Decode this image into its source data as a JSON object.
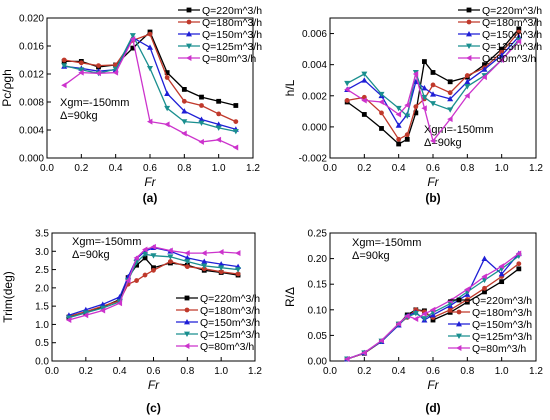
{
  "colors": {
    "Q=220m^3/h": "#000000",
    "Q=180m^3/h": "#c0392b",
    "Q=150m^3/h": "#1f1fd6",
    "Q=125m^3/h": "#1a8f8f",
    "Q=80m^3/h": "#cc33cc"
  },
  "chart_data": [
    {
      "panel_label": "(a)",
      "type": "line",
      "xlabel": "Fr",
      "ylabel": "Pc/ρgh",
      "xlim": [
        0.0,
        1.2
      ],
      "ylim": [
        0.0,
        0.02
      ],
      "xticks": [
        "0.0",
        "0.2",
        "0.4",
        "0.6",
        "0.8",
        "1.0",
        "1.2"
      ],
      "yticks": [
        "0.000",
        "0.004",
        "0.008",
        "0.012",
        "0.016",
        "0.020"
      ],
      "legend": "top-right",
      "annotations": [
        "Xgm=-150mm",
        "Δ=90kg"
      ],
      "x": [
        0.1,
        0.2,
        0.3,
        0.4,
        0.5,
        0.6,
        0.7,
        0.8,
        0.9,
        1.0,
        1.1
      ],
      "series": [
        {
          "name": "Q=220m^3/h",
          "values": [
            0.0138,
            0.0138,
            0.013,
            0.0133,
            0.0157,
            0.018,
            0.0122,
            0.0098,
            0.0087,
            0.0081,
            0.0075
          ]
        },
        {
          "name": "Q=180m^3/h",
          "values": [
            0.014,
            0.0136,
            0.0132,
            0.0133,
            0.0168,
            0.0177,
            0.0115,
            0.0081,
            0.0075,
            0.0063,
            0.0052
          ]
        },
        {
          "name": "Q=150m^3/h",
          "values": [
            0.0131,
            0.0128,
            0.0124,
            0.0126,
            0.0172,
            0.0158,
            0.0092,
            0.0067,
            0.0055,
            0.0048,
            0.0041
          ]
        },
        {
          "name": "Q=125m^3/h",
          "values": [
            0.0132,
            0.0126,
            0.0121,
            0.0127,
            0.0175,
            0.0128,
            0.0071,
            0.0052,
            0.005,
            0.0043,
            0.0038
          ]
        },
        {
          "name": "Q=80m^3/h",
          "values": [
            0.0104,
            0.0122,
            0.0121,
            0.0122,
            0.017,
            0.0052,
            0.0048,
            0.0035,
            0.0023,
            0.0026,
            0.0015
          ]
        }
      ]
    },
    {
      "panel_label": "(b)",
      "type": "line",
      "xlabel": "Fr",
      "ylabel": "h/L",
      "xlim": [
        0.0,
        1.2
      ],
      "ylim": [
        -0.002,
        0.007
      ],
      "xticks": [
        "0.0",
        "0.2",
        "0.4",
        "0.6",
        "0.8",
        "1.0",
        "1.2"
      ],
      "yticks": [
        "-0.002",
        "0.000",
        "0.002",
        "0.004",
        "0.006"
      ],
      "legend": "top-right",
      "annotations": [
        "Xgm=-150mm",
        "Δ=90kg"
      ],
      "x": [
        0.1,
        0.2,
        0.3,
        0.4,
        0.45,
        0.5,
        0.55,
        0.6,
        0.7,
        0.8,
        0.9,
        1.0,
        1.1
      ],
      "series": [
        {
          "name": "Q=220m^3/h",
          "values": [
            0.0016,
            0.0008,
            -0.0001,
            -0.0011,
            -0.0008,
            0.0009,
            0.0042,
            0.0035,
            0.0029,
            0.0032,
            0.004,
            0.005,
            0.0063
          ]
        },
        {
          "name": "Q=180m^3/h",
          "values": [
            0.0017,
            0.0019,
            0.0009,
            -0.0008,
            -0.0005,
            0.0013,
            0.0018,
            0.0027,
            0.0022,
            0.0033,
            0.0038,
            0.0048,
            0.0061
          ]
        },
        {
          "name": "Q=150m^3/h",
          "values": [
            0.0024,
            0.003,
            0.002,
            0.0001,
            0.0008,
            0.0029,
            0.0025,
            0.0021,
            0.0018,
            0.0029,
            0.0037,
            0.0046,
            0.0058
          ]
        },
        {
          "name": "Q=125m^3/h",
          "values": [
            0.0028,
            0.0034,
            0.0021,
            0.0012,
            0.0007,
            0.0035,
            0.0019,
            0.0015,
            0.0011,
            0.0026,
            0.0033,
            0.0043,
            0.0056
          ]
        },
        {
          "name": "Q=80m^3/h",
          "values": [
            0.0024,
            0.0017,
            0.0016,
            0.0008,
            0.0014,
            0.0034,
            0.0012,
            -0.0009,
            0.0005,
            0.002,
            0.0032,
            0.0043,
            0.0055
          ]
        }
      ]
    },
    {
      "panel_label": "(c)",
      "type": "line",
      "xlabel": "Fr",
      "ylabel": "Trim(deg)",
      "xlim": [
        0.0,
        1.2
      ],
      "ylim": [
        0.0,
        3.5
      ],
      "xticks": [
        "0.0",
        "0.2",
        "0.4",
        "0.6",
        "0.8",
        "1.0",
        "1.2"
      ],
      "yticks": [
        "0.0",
        "0.5",
        "1.0",
        "1.5",
        "2.0",
        "2.5",
        "3.0",
        "3.5"
      ],
      "legend": "bottom-right",
      "annotations": [
        "Xgm=-150mm",
        "Δ=90kg"
      ],
      "x": [
        0.1,
        0.2,
        0.3,
        0.4,
        0.45,
        0.5,
        0.55,
        0.6,
        0.7,
        0.8,
        0.9,
        1.0,
        1.1
      ],
      "series": [
        {
          "name": "Q=220m^3/h",
          "values": [
            1.2,
            1.32,
            1.48,
            1.68,
            2.28,
            2.62,
            2.82,
            2.55,
            2.68,
            2.62,
            2.48,
            2.42,
            2.35
          ]
        },
        {
          "name": "Q=180m^3/h",
          "values": [
            1.22,
            1.35,
            1.5,
            1.65,
            2.1,
            2.2,
            2.35,
            2.48,
            2.72,
            2.58,
            2.52,
            2.44,
            2.38
          ]
        },
        {
          "name": "Q=150m^3/h",
          "values": [
            1.25,
            1.4,
            1.55,
            1.75,
            2.3,
            2.8,
            3.0,
            3.1,
            3.0,
            2.82,
            2.72,
            2.65,
            2.58
          ]
        },
        {
          "name": "Q=125m^3/h",
          "values": [
            1.18,
            1.32,
            1.45,
            1.62,
            2.2,
            2.7,
            2.92,
            2.88,
            2.85,
            2.72,
            2.6,
            2.55,
            2.5
          ]
        },
        {
          "name": "Q=80m^3/h",
          "values": [
            1.12,
            1.25,
            1.38,
            1.58,
            2.2,
            2.82,
            3.05,
            3.12,
            3.02,
            2.95,
            2.95,
            2.98,
            2.95
          ]
        }
      ]
    },
    {
      "panel_label": "(d)",
      "type": "line",
      "xlabel": "Fr",
      "ylabel": "R/Δ",
      "xlim": [
        0.0,
        1.2
      ],
      "ylim": [
        0.0,
        0.25
      ],
      "xticks": [
        "0.0",
        "0.2",
        "0.4",
        "0.6",
        "0.8",
        "1.0",
        "1.2"
      ],
      "yticks": [
        "0.00",
        "0.05",
        "0.10",
        "0.15",
        "0.20",
        "0.25"
      ],
      "legend": "bottom-right",
      "annotations": [
        "Xgm=-150mm",
        "Δ=90kg"
      ],
      "x": [
        0.1,
        0.2,
        0.3,
        0.4,
        0.45,
        0.5,
        0.55,
        0.6,
        0.7,
        0.8,
        0.9,
        1.0,
        1.1
      ],
      "series": [
        {
          "name": "Q=220m^3/h",
          "values": [
            0.004,
            0.015,
            0.038,
            0.072,
            0.09,
            0.1,
            0.098,
            0.08,
            0.095,
            0.115,
            0.135,
            0.155,
            0.18
          ]
        },
        {
          "name": "Q=180m^3/h",
          "values": [
            0.004,
            0.015,
            0.038,
            0.072,
            0.085,
            0.1,
            0.096,
            0.085,
            0.1,
            0.12,
            0.142,
            0.165,
            0.19
          ]
        },
        {
          "name": "Q=150m^3/h",
          "values": [
            0.004,
            0.016,
            0.038,
            0.07,
            0.088,
            0.095,
            0.08,
            0.09,
            0.108,
            0.13,
            0.2,
            0.17,
            0.21
          ]
        },
        {
          "name": "Q=125m^3/h",
          "values": [
            0.004,
            0.016,
            0.039,
            0.072,
            0.086,
            0.093,
            0.083,
            0.095,
            0.112,
            0.135,
            0.158,
            0.18,
            0.205
          ]
        },
        {
          "name": "Q=80m^3/h",
          "values": [
            0.004,
            0.016,
            0.04,
            0.073,
            0.088,
            0.082,
            0.092,
            0.1,
            0.118,
            0.14,
            0.165,
            0.185,
            0.21
          ]
        }
      ]
    }
  ]
}
